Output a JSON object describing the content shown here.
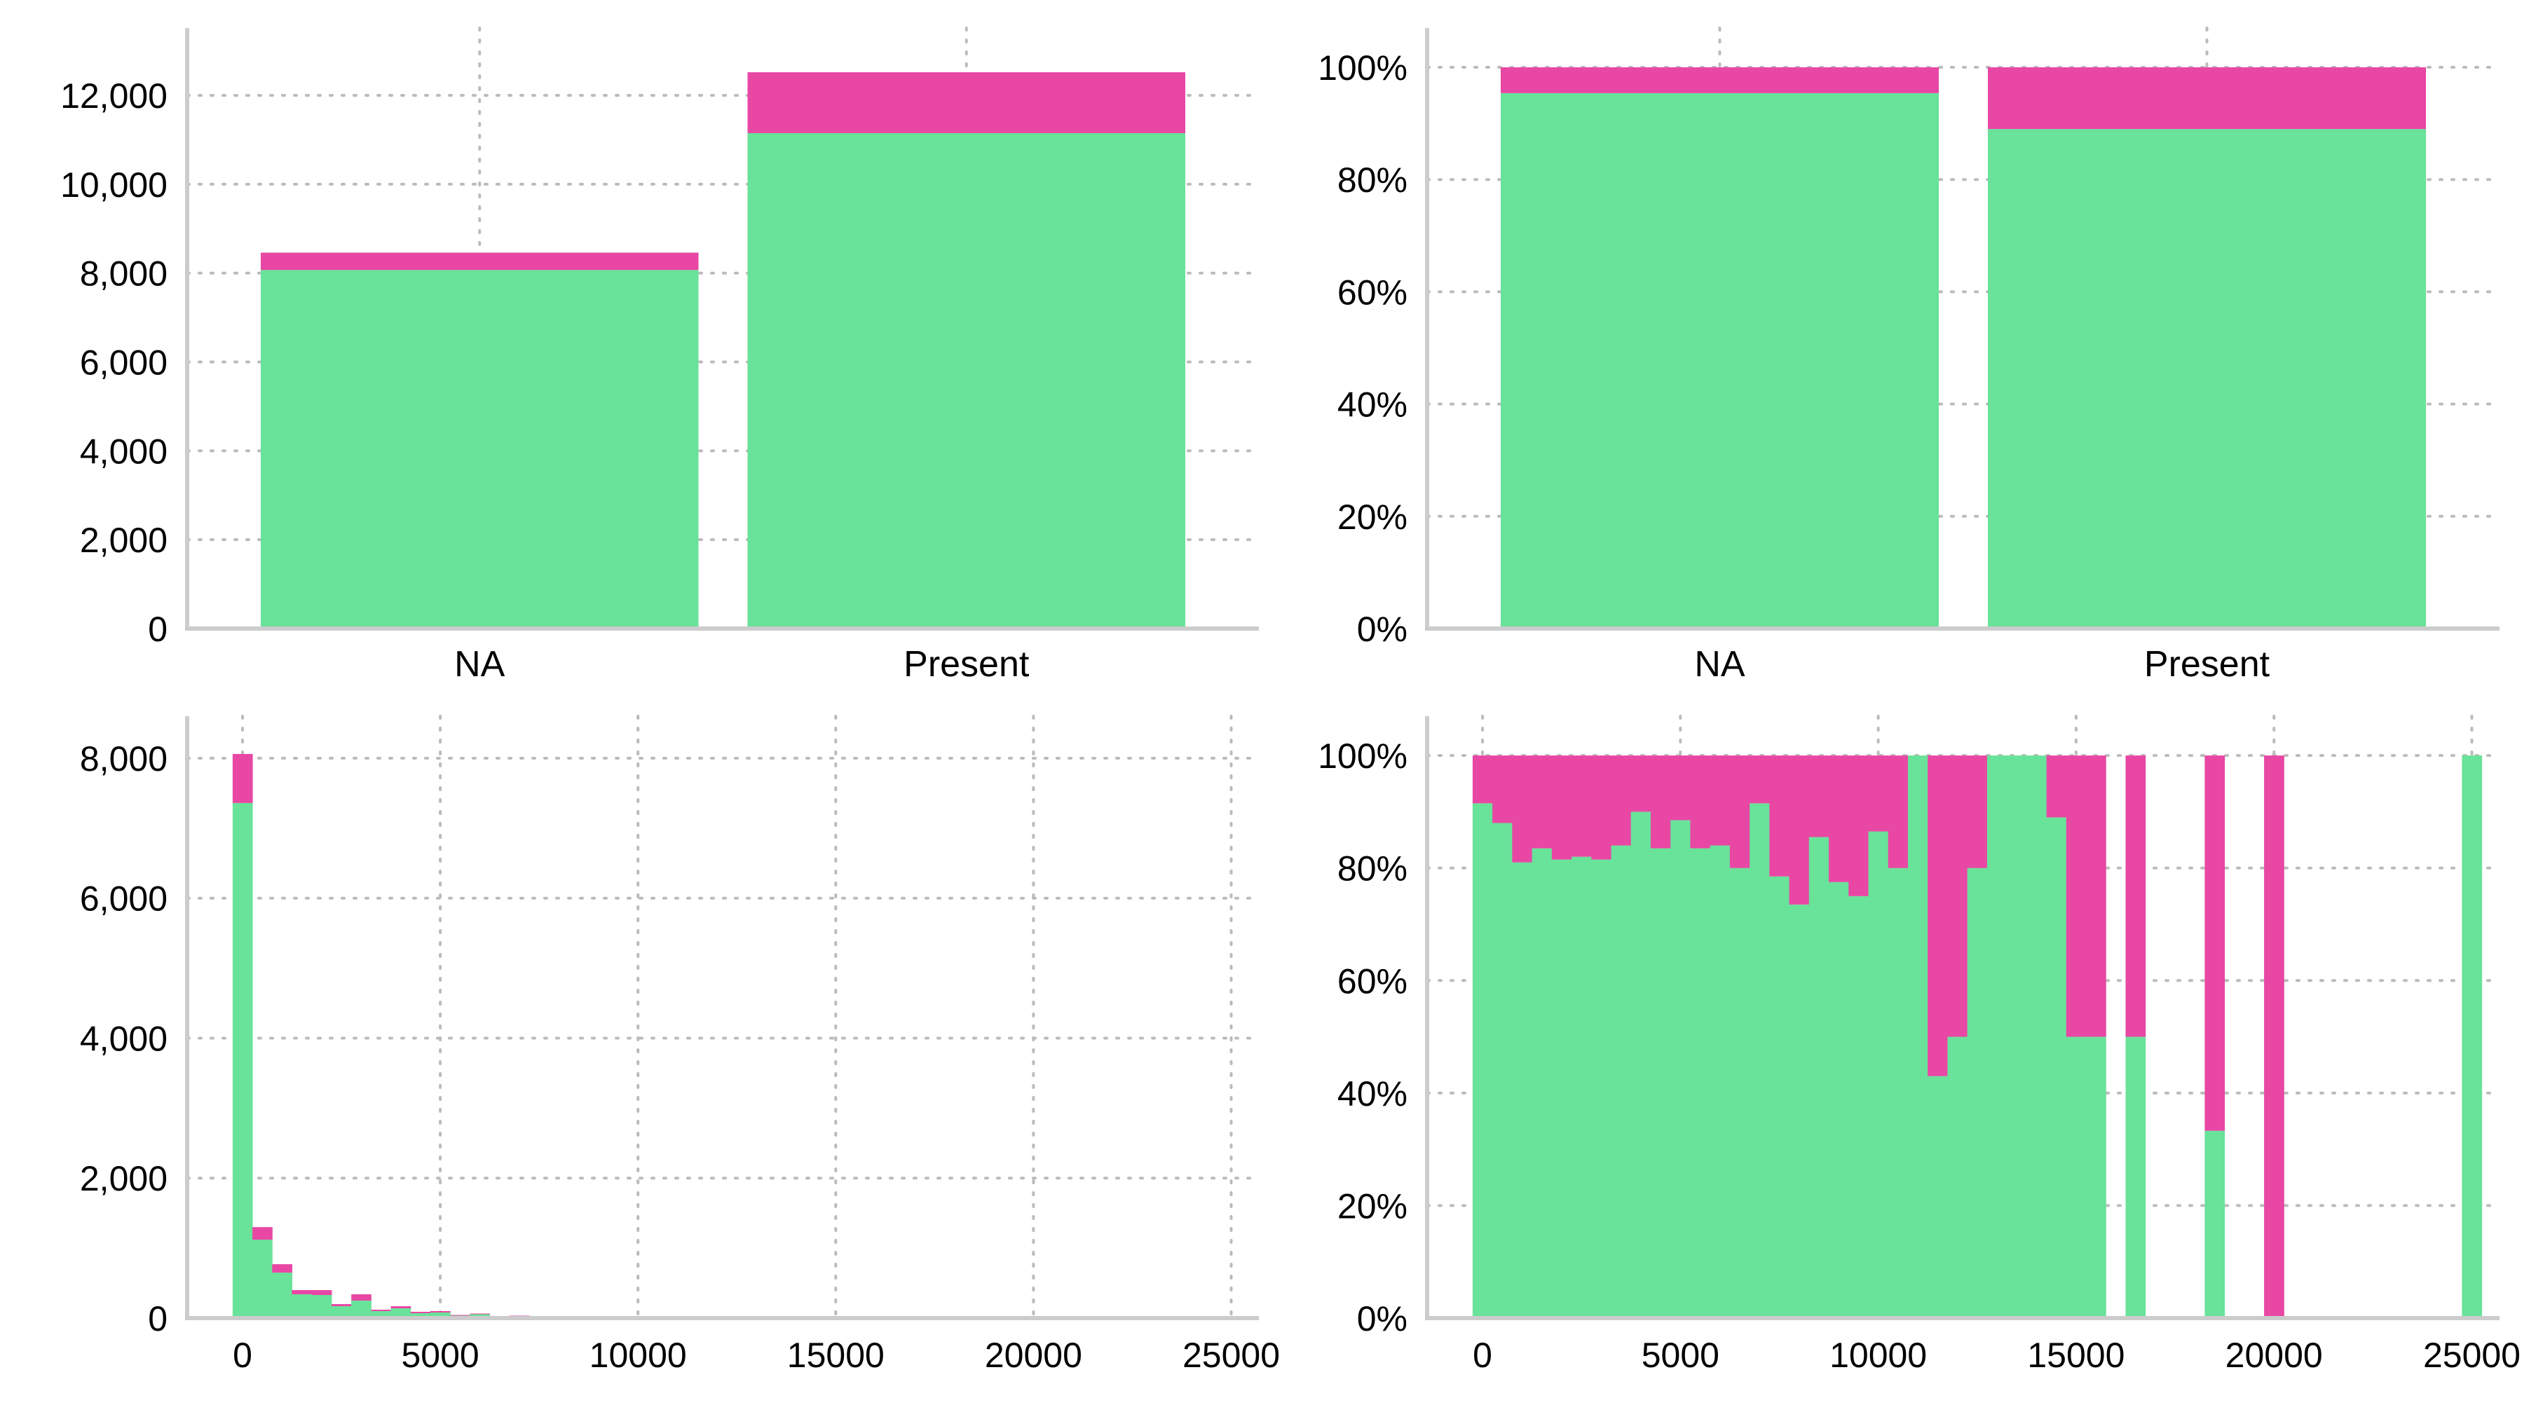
{
  "colors": {
    "primary": "#69E29A",
    "secondary": "#E847A4",
    "axis": "#cccccc",
    "grid": "#bbbbbb"
  },
  "chart_data": [
    {
      "id": "top-left",
      "type": "bar",
      "stacked": true,
      "categories": [
        "NA",
        "Present"
      ],
      "series": [
        {
          "values": [
            8070,
            11150
          ]
        },
        {
          "values": [
            390,
            1370
          ]
        }
      ],
      "ylim": [
        0,
        13200
      ],
      "yticks": [
        0,
        2000,
        4000,
        6000,
        8000,
        10000,
        12000
      ],
      "ytick_labels": [
        "0",
        "2,000",
        "4,000",
        "6,000",
        "8,000",
        "10,000",
        "12,000"
      ],
      "grid": true
    },
    {
      "id": "top-right",
      "type": "bar",
      "stacked": true,
      "normalized": true,
      "categories": [
        "NA",
        "Present"
      ],
      "series": [
        {
          "values": [
            95.4,
            89.0
          ]
        },
        {
          "values": [
            4.6,
            11.0
          ]
        }
      ],
      "ylim": [
        0,
        104.5
      ],
      "yticks": [
        0,
        20,
        40,
        60,
        80,
        100
      ],
      "ytick_labels": [
        "0%",
        "20%",
        "40%",
        "60%",
        "80%",
        "100%"
      ],
      "grid": true
    },
    {
      "id": "bottom-left",
      "type": "bar",
      "stacked": true,
      "histogram": true,
      "bin_width": 500,
      "x_start": -250,
      "xlim": [
        -1400,
        25700
      ],
      "xticks": [
        0,
        5000,
        10000,
        15000,
        20000,
        25000
      ],
      "xtick_labels": [
        "0",
        "5000",
        "10000",
        "15000",
        "20000",
        "25000"
      ],
      "ylim": [
        0,
        8400
      ],
      "yticks": [
        0,
        2000,
        4000,
        6000,
        8000
      ],
      "ytick_labels": [
        "0",
        "2,000",
        "4,000",
        "6,000",
        "8,000"
      ],
      "series": [
        {
          "values": [
            7360,
            1120,
            650,
            340,
            330,
            170,
            250,
            100,
            140,
            70,
            80,
            35,
            55,
            20,
            30,
            12,
            15,
            8,
            7,
            4,
            5,
            3,
            3,
            3,
            2,
            2,
            1,
            1,
            1,
            1,
            1,
            1,
            1,
            1,
            1,
            1,
            1,
            1,
            1,
            1,
            0,
            1,
            0,
            1,
            0,
            0,
            0,
            0,
            0,
            0,
            1
          ]
        },
        {
          "values": [
            700,
            180,
            120,
            60,
            70,
            30,
            90,
            20,
            30,
            20,
            20,
            10,
            10,
            5,
            5,
            3,
            3,
            2,
            3,
            2,
            2,
            1,
            2,
            2,
            1,
            0,
            1,
            0,
            0,
            0,
            1,
            1,
            0,
            0,
            0,
            0,
            0,
            0,
            1,
            0,
            0,
            1,
            0,
            2,
            0,
            0,
            0,
            0,
            0,
            0,
            0
          ]
        }
      ],
      "grid": true
    },
    {
      "id": "bottom-right",
      "type": "bar",
      "stacked": true,
      "normalized": true,
      "histogram": true,
      "bin_width": 500,
      "x_start": -250,
      "xlim": [
        -1400,
        25700
      ],
      "xticks": [
        0,
        5000,
        10000,
        15000,
        20000,
        25000
      ],
      "xtick_labels": [
        "0",
        "5000",
        "10000",
        "15000",
        "20000",
        "25000"
      ],
      "ylim": [
        0,
        104.5
      ],
      "yticks": [
        0,
        20,
        40,
        60,
        80,
        100
      ],
      "ytick_labels": [
        "0%",
        "20%",
        "40%",
        "60%",
        "80%",
        "100%"
      ],
      "series": [
        {
          "values": [
            91.5,
            88,
            81,
            83.5,
            81.5,
            82,
            81.5,
            84,
            90,
            83.5,
            88.5,
            83.5,
            84,
            80,
            91.5,
            78.5,
            73.5,
            85.5,
            77.5,
            75,
            86.5,
            80,
            100,
            43,
            50,
            80,
            100,
            100,
            100,
            89,
            50,
            50,
            0,
            50,
            0,
            0,
            0,
            33.3,
            0,
            0,
            0,
            0,
            0,
            0,
            0,
            0,
            0,
            0,
            0,
            0,
            100
          ]
        },
        {
          "values": [
            8.5,
            12,
            19,
            16.5,
            18.5,
            18,
            18.5,
            16,
            10,
            16.5,
            11.5,
            16.5,
            16,
            20,
            8.5,
            21.5,
            26.5,
            14.5,
            22.5,
            25,
            13.5,
            20,
            0,
            57,
            50,
            20,
            0,
            0,
            0,
            11,
            50,
            50,
            0,
            50,
            0,
            0,
            0,
            66.7,
            0,
            0,
            100,
            0,
            0,
            0,
            0,
            0,
            0,
            0,
            0,
            0,
            0
          ]
        }
      ],
      "grid": true
    }
  ]
}
